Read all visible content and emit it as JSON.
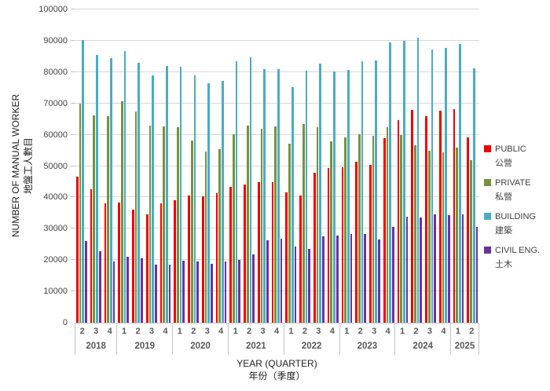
{
  "chart_data": {
    "type": "bar",
    "title": "",
    "ylabel_en": "NUMBER OF MANUAL WORKER",
    "ylabel_zh": "地盤工人數目",
    "xlabel_en": "YEAR (QUARTER)",
    "xlabel_zh": "年份（季度）",
    "ylim": [
      0,
      100000
    ],
    "yticks": [
      0,
      10000,
      20000,
      30000,
      40000,
      50000,
      60000,
      70000,
      80000,
      90000,
      100000
    ],
    "grid": "horizontal",
    "legend_position": "right",
    "years": [
      {
        "label": "2018",
        "quarters": [
          "2",
          "3",
          "4"
        ]
      },
      {
        "label": "2019",
        "quarters": [
          "1",
          "2",
          "3",
          "4"
        ]
      },
      {
        "label": "2020",
        "quarters": [
          "1",
          "2",
          "3",
          "4"
        ]
      },
      {
        "label": "2021",
        "quarters": [
          "1",
          "2",
          "3",
          "4"
        ]
      },
      {
        "label": "2022",
        "quarters": [
          "1",
          "2",
          "3",
          "4"
        ]
      },
      {
        "label": "2023",
        "quarters": [
          "1",
          "2",
          "3",
          "4"
        ]
      },
      {
        "label": "2024",
        "quarters": [
          "1",
          "2",
          "3",
          "4"
        ]
      },
      {
        "label": "2025",
        "quarters": [
          "1",
          "2"
        ]
      }
    ],
    "series": [
      {
        "key": "public",
        "name": "PUBLIC",
        "name_zh": "公營",
        "color": "#ee0000",
        "values": [
          46500,
          42700,
          38000,
          38300,
          36200,
          34500,
          38000,
          39100,
          40500,
          40400,
          41400,
          43300,
          44000,
          44800,
          44800,
          41500,
          40500,
          47800,
          49400,
          49700,
          51500,
          50300,
          58800,
          64600,
          67900,
          66000,
          67700,
          68100,
          59100
        ]
      },
      {
        "key": "private",
        "name": "PRIVATE",
        "name_zh": "私營",
        "color": "#76933c",
        "values": [
          70000,
          66100,
          65800,
          70600,
          67300,
          62900,
          62700,
          62500,
          58100,
          54700,
          55400,
          60200,
          62900,
          61900,
          62700,
          57100,
          63300,
          62300,
          57900,
          59100,
          60100,
          59600,
          62300,
          59800,
          56700,
          55000,
          54400,
          55900,
          52000
        ]
      },
      {
        "key": "building",
        "name": "BUILDING",
        "name_zh": "建築",
        "color": "#4bacc6",
        "values": [
          90300,
          85500,
          84500,
          86800,
          83000,
          79000,
          82000,
          81700,
          79000,
          76400,
          77100,
          83500,
          84800,
          81000,
          81000,
          75200,
          80500,
          82700,
          80200,
          80600,
          83400,
          83600,
          89600,
          90000,
          91000,
          87300,
          87800,
          89000,
          81100
        ]
      },
      {
        "key": "civil-eng",
        "name": "CIVIL ENG.",
        "name_zh": "土木",
        "color": "#7030a0",
        "values": [
          26100,
          22800,
          19600,
          21000,
          20500,
          18500,
          18500,
          19900,
          19500,
          18800,
          19500,
          20000,
          21800,
          26400,
          26700,
          24400,
          23500,
          27500,
          27800,
          28300,
          28200,
          26500,
          30500,
          33800,
          33500,
          34700,
          34300,
          34500,
          30500
        ]
      }
    ]
  }
}
